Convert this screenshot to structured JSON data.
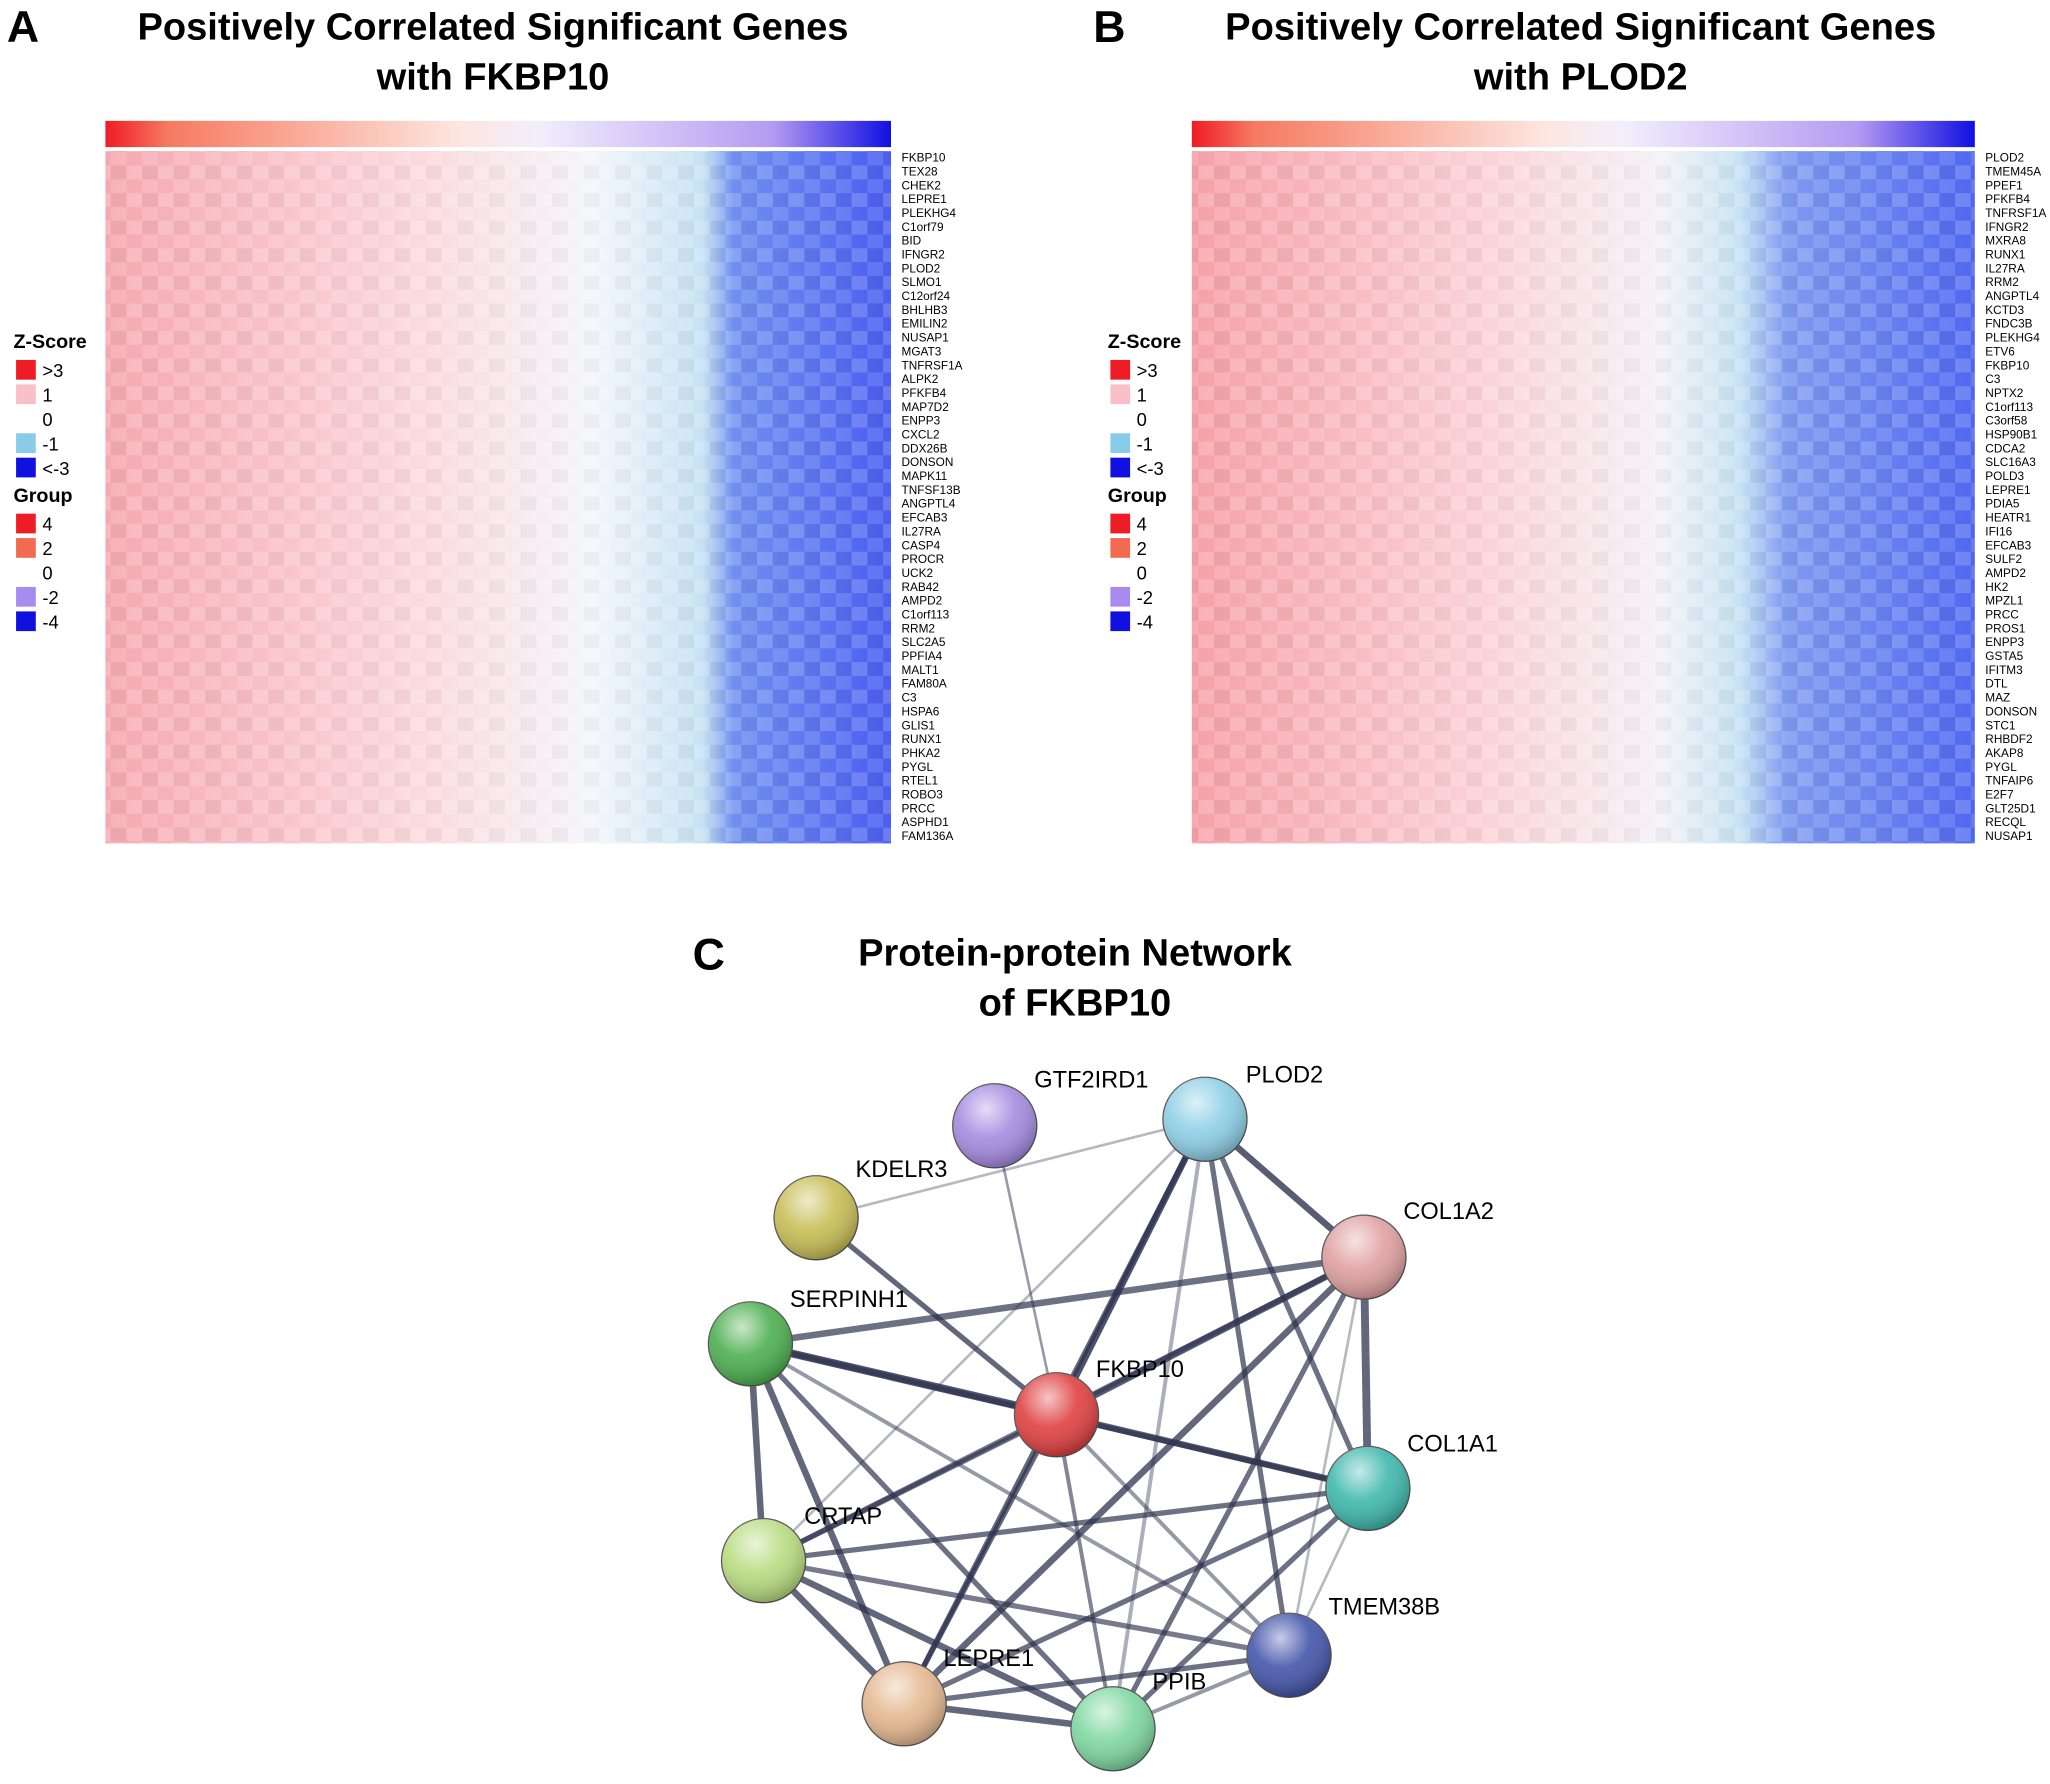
{
  "panels": [
    {
      "letter": "A",
      "title": [
        "Positively Correlated Significant Genes",
        "with FKBP10"
      ],
      "genes": [
        "FKBP10",
        "TEX28",
        "CHEK2",
        "LEPRE1",
        "PLEKHG4",
        "C1orf79",
        "BID",
        "IFNGR2",
        "PLOD2",
        "SLMO1",
        "C12orf24",
        "BHLHB3",
        "EMILIN2",
        "NUSAP1",
        "MGAT3",
        "TNFRSF1A",
        "ALPK2",
        "PFKFB4",
        "MAP7D2",
        "ENPP3",
        "CXCL2",
        "DDX26B",
        "DONSON",
        "MAPK11",
        "TNFSF13B",
        "ANGPTL4",
        "EFCAB3",
        "IL27RA",
        "CASP4",
        "PROCR",
        "UCK2",
        "RAB42",
        "AMPD2",
        "C1orf113",
        "RRM2",
        "SLC2A5",
        "PPFIA4",
        "MALT1",
        "FAM80A",
        "C3",
        "HSPA6",
        "GLIS1",
        "RUNX1",
        "PHKA2",
        "PYGL",
        "RTEL1",
        "ROBO3",
        "PRCC",
        "ASPHD1",
        "FAM136A"
      ],
      "legend": [
        {
          "title": "Z-Score",
          "items": [
            {
              "label": ">3",
              "color": "#ee1c25"
            },
            {
              "label": "1",
              "color": "#f9c0c8"
            },
            {
              "label": "0",
              "color": "#ffffff"
            },
            {
              "label": "-1",
              "color": "#88cce8"
            },
            {
              "label": "<-3",
              "color": "#1010e0"
            }
          ]
        },
        {
          "title": "Group",
          "items": [
            {
              "label": "4",
              "color": "#ee1c25"
            },
            {
              "label": "2",
              "color": "#f26a4f"
            },
            {
              "label": "0",
              "color": "#ffffff"
            },
            {
              "label": "-2",
              "color": "#a88af0"
            },
            {
              "label": "-4",
              "color": "#1010e0"
            }
          ]
        }
      ]
    },
    {
      "letter": "B",
      "title": [
        "Positively Correlated Significant Genes",
        "with PLOD2"
      ],
      "genes": [
        "PLOD2",
        "TMEM45A",
        "PPEF1",
        "PFKFB4",
        "TNFRSF1A",
        "IFNGR2",
        "MXRA8",
        "RUNX1",
        "IL27RA",
        "RRM2",
        "ANGPTL4",
        "KCTD3",
        "FNDC3B",
        "PLEKHG4",
        "ETV6",
        "FKBP10",
        "C3",
        "NPTX2",
        "C1orf113",
        "C3orf58",
        "HSP90B1",
        "CDCA2",
        "SLC16A3",
        "POLD3",
        "LEPRE1",
        "PDIA5",
        "HEATR1",
        "IFI16",
        "EFCAB3",
        "SULF2",
        "AMPD2",
        "HK2",
        "MPZL1",
        "PRCC",
        "PROS1",
        "ENPP3",
        "GSTA5",
        "IFITM3",
        "DTL",
        "MAZ",
        "DONSON",
        "STC1",
        "RHBDF2",
        "AKAP8",
        "PYGL",
        "TNFAIP6",
        "E2F7",
        "GLT25D1",
        "RECQL",
        "NUSAP1"
      ],
      "legend": [
        {
          "title": "Z-Score",
          "items": [
            {
              "label": ">3",
              "color": "#ee1c25"
            },
            {
              "label": "1",
              "color": "#f9c0c8"
            },
            {
              "label": "0",
              "color": "#ffffff"
            },
            {
              "label": "-1",
              "color": "#88cce8"
            },
            {
              "label": "<-3",
              "color": "#1010e0"
            }
          ]
        },
        {
          "title": "Group",
          "items": [
            {
              "label": "4",
              "color": "#ee1c25"
            },
            {
              "label": "2",
              "color": "#f26a4f"
            },
            {
              "label": "0",
              "color": "#ffffff"
            },
            {
              "label": "-2",
              "color": "#a88af0"
            },
            {
              "label": "-4",
              "color": "#1010e0"
            }
          ]
        }
      ]
    }
  ],
  "network": {
    "letter": "C",
    "title": [
      "Protein-protein Network",
      "of FKBP10"
    ],
    "nodes": [
      {
        "label": "GTF2IRD1",
        "color": "#a58be0"
      },
      {
        "label": "PLOD2",
        "color": "#8ecfe6"
      },
      {
        "label": "KDELR3",
        "color": "#c8be55"
      },
      {
        "label": "COL1A2",
        "color": "#e0a0a0"
      },
      {
        "label": "SERPINH1",
        "color": "#4caf50"
      },
      {
        "label": "FKBP10",
        "color": "#e04040"
      },
      {
        "label": "COL1A1",
        "color": "#3fb8ad"
      },
      {
        "label": "CRTAP",
        "color": "#b8dc80"
      },
      {
        "label": "TMEM38B",
        "color": "#4455aa"
      },
      {
        "label": "LEPRE1",
        "color": "#e5b890"
      },
      {
        "label": "PPIB",
        "color": "#7fd8a0"
      }
    ]
  }
}
